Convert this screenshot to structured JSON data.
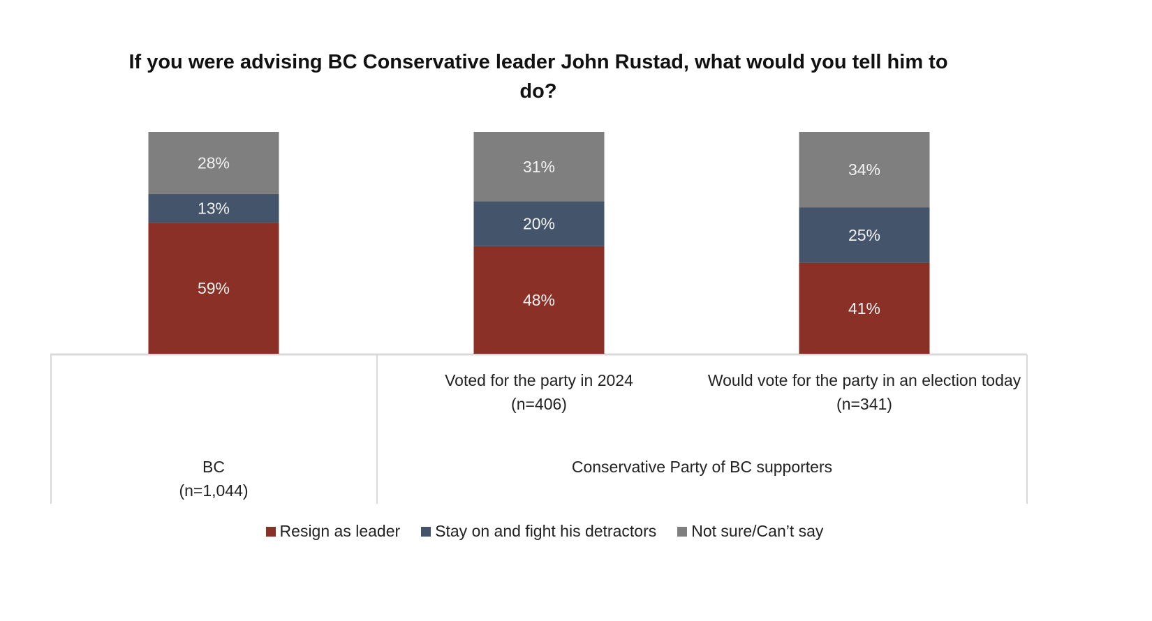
{
  "chart_data": {
    "type": "bar",
    "stacked": "100%",
    "title": "If you were advising BC Conservative leader John Rustad, what would you tell him to do?",
    "categories": [
      {
        "label": "BC",
        "n": "(n=1,044)",
        "group": ""
      },
      {
        "label": "Voted for the party in 2024",
        "n": "(n=406)",
        "group": "Conservative Party of BC supporters"
      },
      {
        "label": "Would vote for the party in an election today",
        "n": "(n=341)",
        "group": "Conservative Party of BC supporters"
      }
    ],
    "group_label": "Conservative Party of BC supporters",
    "series": [
      {
        "name": "Resign as leader",
        "color": "#8B3026",
        "values": [
          59,
          48,
          41
        ]
      },
      {
        "name": "Stay on and fight his detractors",
        "color": "#44546A",
        "values": [
          13,
          20,
          25
        ]
      },
      {
        "name": "Not sure/Can’t say",
        "color": "#7F7F7F",
        "values": [
          28,
          31,
          34
        ]
      }
    ],
    "value_format": "{v}%",
    "legend_position": "bottom",
    "grid": false
  }
}
